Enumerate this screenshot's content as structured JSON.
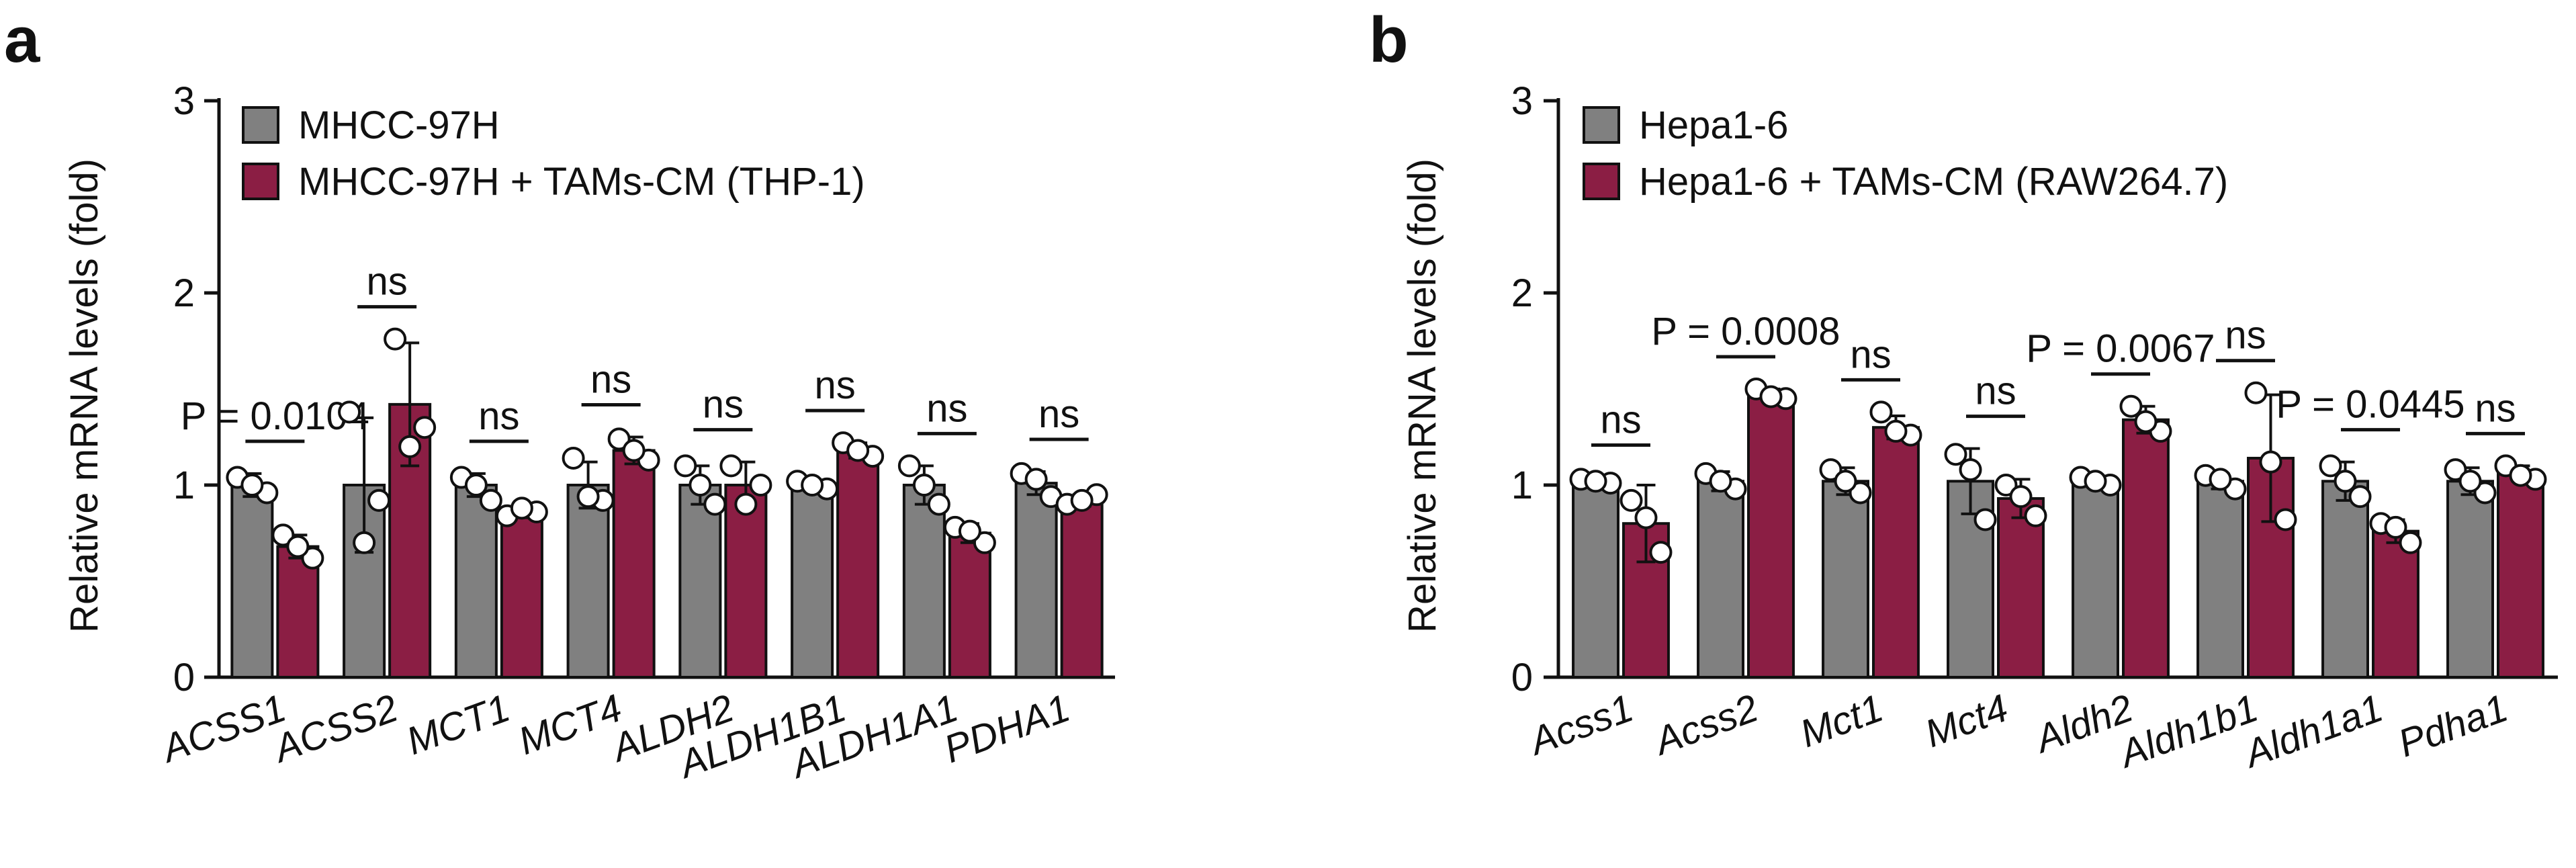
{
  "chart_data": [
    {
      "panel": "a",
      "type": "bar",
      "ylabel": "Relative mRNA levels (fold)",
      "ylim": [
        0,
        3
      ],
      "yticks": [
        "0",
        "1",
        "2",
        "3"
      ],
      "colors": {
        "control": "#808080",
        "treated": "#8B1E44"
      },
      "categories": [
        "ACSS1",
        "ACSS2",
        "MCT1",
        "MCT4",
        "ALDH2",
        "ALDH1B1",
        "ALDH1A1",
        "PDHA1"
      ],
      "series": [
        {
          "name": "MHCC-97H",
          "values": [
            1.0,
            1.0,
            1.0,
            1.0,
            1.0,
            1.0,
            1.0,
            1.01
          ],
          "sd": [
            0.06,
            0.35,
            0.06,
            0.12,
            0.1,
            0.03,
            0.1,
            0.06
          ],
          "points": [
            [
              1.04,
              0.96,
              1.0
            ],
            [
              1.38,
              0.92,
              0.7
            ],
            [
              1.04,
              0.92,
              1.0
            ],
            [
              1.14,
              0.92,
              0.94
            ],
            [
              1.1,
              0.9,
              1.0
            ],
            [
              1.02,
              0.98,
              1.0
            ],
            [
              1.1,
              0.9,
              1.0
            ],
            [
              1.06,
              0.94,
              1.03
            ]
          ]
        },
        {
          "name": "MHCC-97H + TAMs-CM (THP-1)",
          "values": [
            0.68,
            1.42,
            0.86,
            1.18,
            1.0,
            1.18,
            0.75,
            0.92
          ],
          "sd": [
            0.06,
            0.32,
            0.03,
            0.07,
            0.12,
            0.04,
            0.05,
            0.03
          ],
          "points": [
            [
              0.74,
              0.62,
              0.68
            ],
            [
              1.76,
              1.3,
              1.2
            ],
            [
              0.84,
              0.86,
              0.88
            ],
            [
              1.24,
              1.13,
              1.18
            ],
            [
              1.1,
              1.0,
              0.9
            ],
            [
              1.22,
              1.15,
              1.18
            ],
            [
              0.78,
              0.7,
              0.76
            ],
            [
              0.9,
              0.95,
              0.92
            ]
          ]
        }
      ],
      "significance": [
        "P = 0.0104",
        "ns",
        "ns",
        "ns",
        "ns",
        "ns",
        "ns",
        "ns"
      ]
    },
    {
      "panel": "b",
      "type": "bar",
      "ylabel": "Relative mRNA levels (fold)",
      "ylim": [
        0,
        3
      ],
      "yticks": [
        "0",
        "1",
        "2",
        "3"
      ],
      "colors": {
        "control": "#808080",
        "treated": "#8B1E44"
      },
      "categories": [
        "Acss1",
        "Acss2",
        "Mct1",
        "Mct4",
        "Aldh2",
        "Aldh1b1",
        "Aldh1a1",
        "Pdha1"
      ],
      "series": [
        {
          "name": "Hepa1-6",
          "values": [
            1.02,
            1.02,
            1.02,
            1.02,
            1.02,
            1.02,
            1.02,
            1.02
          ],
          "sd": [
            0.02,
            0.05,
            0.07,
            0.17,
            0.03,
            0.04,
            0.1,
            0.07
          ],
          "points": [
            [
              1.03,
              1.01,
              1.02
            ],
            [
              1.06,
              0.98,
              1.02
            ],
            [
              1.08,
              0.96,
              1.02
            ],
            [
              1.16,
              0.82,
              1.08
            ],
            [
              1.04,
              1.0,
              1.02
            ],
            [
              1.05,
              0.98,
              1.03
            ],
            [
              1.1,
              0.94,
              1.02
            ],
            [
              1.08,
              0.96,
              1.02
            ]
          ]
        },
        {
          "name": "Hepa1-6 + TAMs-CM (RAW264.7)",
          "values": [
            0.8,
            1.47,
            1.3,
            0.93,
            1.34,
            1.14,
            0.76,
            1.06
          ],
          "sd": [
            0.2,
            0.03,
            0.06,
            0.1,
            0.07,
            0.33,
            0.06,
            0.04
          ],
          "points": [
            [
              0.92,
              0.65,
              0.83
            ],
            [
              1.5,
              1.45,
              1.46
            ],
            [
              1.38,
              1.26,
              1.28
            ],
            [
              1.0,
              0.84,
              0.94
            ],
            [
              1.41,
              1.28,
              1.33
            ],
            [
              1.48,
              0.82,
              1.12
            ],
            [
              0.8,
              0.7,
              0.78
            ],
            [
              1.1,
              1.03,
              1.05
            ]
          ]
        }
      ],
      "significance": [
        "ns",
        "P = 0.0008",
        "ns",
        "ns",
        "P = 0.0067",
        "ns",
        "P = 0.0445",
        "ns"
      ]
    }
  ]
}
